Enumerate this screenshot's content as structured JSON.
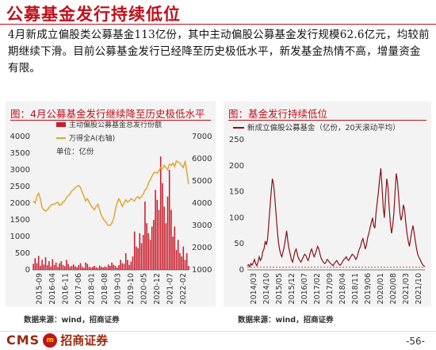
{
  "page": {
    "title": "公募基金发行持续低位",
    "body": "4月新成立偏股类公募基金113亿份，其中主动偏股公募基金发行规模62.6亿元，均较前期继续下滑。目前公募基金发行已经降至历史极低水平，新发基金热情不高，增量资金有限。",
    "page_number": "-56-"
  },
  "logo": {
    "cms": "CMS",
    "badge": "m",
    "cn": "招商证券"
  },
  "left_panel": {
    "title": "图：4月公募基金发行继续降至历史极低水平",
    "source": "数据来源：wind，招商证券"
  },
  "right_panel": {
    "title": "图：基金发行持续低位",
    "source": "数据来源：wind，招商证券"
  },
  "colors": {
    "accent": "#c0101a",
    "bars": "#c91c2c",
    "line_gold": "#e0a630",
    "line_dark_red": "#8a1018"
  },
  "chart_data": [
    {
      "type": "bar",
      "title": "图：4月公募基金发行继续降至历史极低水平",
      "legend": [
        "主动偏股公募基金总发行份额",
        "万得全A(右轴)"
      ],
      "unit_note": "单位：亿份",
      "xtick_labels": [
        "2015-09",
        "2016-04",
        "2016-11",
        "2017-06",
        "2018-01",
        "2018-08",
        "2019-03",
        "2019-10",
        "2020-05",
        "2020-12",
        "2021-07",
        "2022-02"
      ],
      "ylim": [
        0,
        4000
      ],
      "yticks": [
        0,
        500,
        1000,
        1500,
        2000,
        2500,
        3000,
        3500,
        4000
      ],
      "ylim_right": [
        1000,
        7000
      ],
      "yticks_right": [
        1000,
        2000,
        3000,
        4000,
        5000,
        6000,
        7000
      ],
      "series": [
        {
          "name": "主动偏股公募基金总发行份额",
          "kind": "bar",
          "axis": "left",
          "values": [
            180,
            350,
            200,
            420,
            120,
            300,
            160,
            380,
            140,
            260,
            100,
            320,
            150,
            220,
            90,
            200,
            260,
            150,
            110,
            300,
            180,
            90,
            120,
            160,
            110,
            80,
            140,
            200,
            100,
            60,
            220,
            180,
            90,
            70,
            90,
            120,
            80,
            60,
            130,
            90,
            70,
            100,
            80,
            160,
            120,
            220,
            150,
            120,
            70,
            140,
            300,
            200,
            180,
            500,
            300,
            150,
            250,
            400,
            1150,
            700,
            650,
            1100,
            800,
            1050,
            2050,
            1400,
            1100,
            900,
            1300,
            1500,
            2400,
            2100,
            1800,
            3400,
            2600,
            1900,
            1400,
            2200,
            3000,
            1800,
            1000,
            1300,
            600,
            900,
            500,
            400,
            700,
            300,
            500,
            120
          ]
        },
        {
          "name": "万得全A(右轴)",
          "kind": "line",
          "axis": "right",
          "values": [
            4100,
            4000,
            4300,
            4450,
            4200,
            3800,
            3700,
            3650,
            3700,
            3800,
            3900,
            3950,
            3950,
            4000,
            4050,
            3900,
            3950,
            4050,
            4100,
            4250,
            4350,
            4400,
            4550,
            4600,
            4700,
            4750,
            4800,
            4700,
            4500,
            4300,
            4100,
            4200,
            4050,
            3900,
            3800,
            3700,
            3850,
            3950,
            3700,
            3450,
            3300,
            3200,
            3100,
            3000,
            3000,
            3100,
            3300,
            3700,
            4000,
            4200,
            4050,
            3850,
            4000,
            4150,
            4050,
            4100,
            4200,
            4150,
            4100,
            4250,
            4300,
            4200,
            4300,
            4400,
            4600,
            4650,
            4900,
            5050,
            5200,
            5350,
            5400,
            5350,
            5450,
            5600,
            5550,
            5700,
            5600,
            5500,
            5750,
            5700,
            5800,
            5650,
            5900,
            5850,
            5800,
            5700,
            5600,
            5900,
            5400,
            4850
          ]
        }
      ]
    },
    {
      "type": "line",
      "title": "图：基金发行持续低位",
      "legend": [
        "新成立偏股公募基金（亿份，20天滚动平均）"
      ],
      "xtick_labels": [
        "2014/03",
        "2014/10",
        "2015/05",
        "2015/12",
        "2016/07",
        "2017/02",
        "2017/09",
        "2018/04",
        "2018/11",
        "2019/06",
        "2020/01",
        "2020/08",
        "2021/03",
        "2021/10"
      ],
      "ylim": [
        0,
        250
      ],
      "yticks": [
        0,
        50,
        100,
        150,
        200,
        250
      ],
      "reference_line": 5,
      "series": [
        {
          "name": "新成立偏股公募基金（亿份，20天滚动平均）",
          "values": [
            8,
            10,
            6,
            12,
            9,
            14,
            20,
            12,
            8,
            15,
            25,
            18,
            22,
            35,
            40,
            55,
            48,
            60,
            90,
            120,
            150,
            175,
            165,
            140,
            110,
            80,
            55,
            40,
            30,
            25,
            35,
            45,
            60,
            75,
            55,
            40,
            30,
            20,
            15,
            25,
            35,
            40,
            30,
            22,
            18,
            15,
            20,
            25,
            30,
            28,
            22,
            18,
            25,
            35,
            40,
            32,
            25,
            30,
            38,
            45,
            40,
            30,
            22,
            18,
            14,
            12,
            15,
            20,
            18,
            14,
            12,
            10,
            8,
            12,
            15,
            18,
            14,
            10,
            9,
            12,
            16,
            20,
            22,
            25,
            20,
            18,
            22,
            26,
            30,
            28,
            25,
            20,
            24,
            32,
            40,
            45,
            55,
            60,
            50,
            40,
            48,
            62,
            70,
            80,
            90,
            100,
            85,
            80,
            110,
            130,
            150,
            175,
            195,
            160,
            120,
            100,
            140,
            175,
            160,
            120,
            90,
            70,
            85,
            110,
            150,
            185,
            170,
            140,
            110,
            95,
            105,
            125,
            115,
            90,
            70,
            55,
            45,
            60,
            75,
            85,
            70,
            55,
            40,
            30,
            24,
            20,
            15,
            10,
            8,
            6
          ]
        }
      ]
    }
  ]
}
